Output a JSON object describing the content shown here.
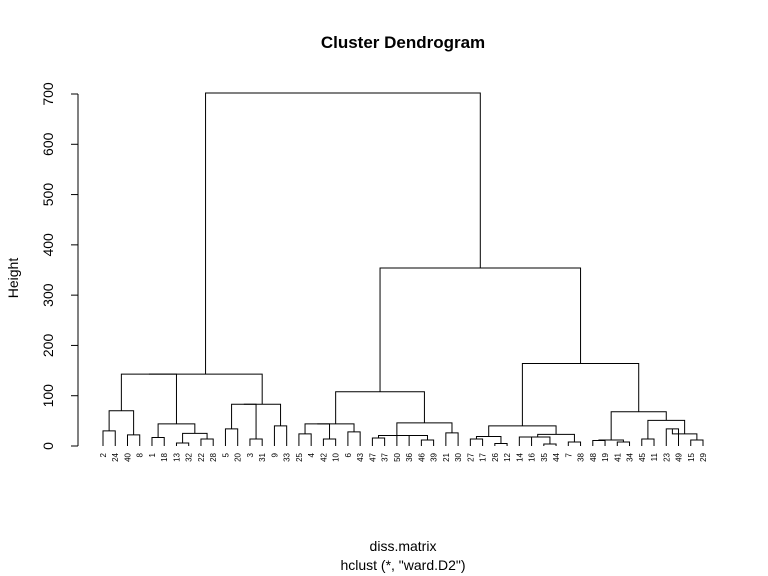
{
  "chart_data": {
    "type": "dendrogram",
    "title": "Cluster Dendrogram",
    "ylabel": "Height",
    "xlabel": "diss.matrix",
    "sub": "hclust (*, \"ward.D2\")",
    "ylim": [
      0,
      700
    ],
    "yticks": [
      0,
      100,
      200,
      300,
      400,
      500,
      600,
      700
    ],
    "leaves": [
      "2",
      "24",
      "40",
      "8",
      "1",
      "18",
      "13",
      "32",
      "22",
      "28",
      "5",
      "20",
      "3",
      "31",
      "9",
      "33",
      "25",
      "4",
      "42",
      "10",
      "6",
      "43",
      "47",
      "37",
      "50",
      "36",
      "46",
      "39",
      "21",
      "30",
      "27",
      "17",
      "26",
      "12",
      "14",
      "16",
      "35",
      "44",
      "7",
      "38",
      "48",
      "19",
      "41",
      "34",
      "45",
      "11",
      "23",
      "49",
      "15",
      "29"
    ],
    "merges": [
      {
        "children": [
          "2",
          "24"
        ],
        "height": 30
      },
      {
        "children": [
          "40",
          "8"
        ],
        "height": 22
      },
      {
        "children": [
          0,
          1
        ],
        "height": 70
      },
      {
        "children": [
          "1",
          "18"
        ],
        "height": 17
      },
      {
        "children": [
          "13",
          "32"
        ],
        "height": 6
      },
      {
        "children": [
          "22",
          "28"
        ],
        "height": 14
      },
      {
        "children": [
          4,
          5
        ],
        "height": 25
      },
      {
        "children": [
          3,
          6
        ],
        "height": 44
      },
      {
        "children": [
          2,
          7
        ],
        "height": 143
      },
      {
        "children": [
          "5",
          "20"
        ],
        "height": 34
      },
      {
        "children": [
          "3",
          "31"
        ],
        "height": 14
      },
      {
        "children": [
          9,
          10
        ],
        "height": 83
      },
      {
        "children": [
          "9",
          "33"
        ],
        "height": 40
      },
      {
        "children": [
          11,
          12
        ],
        "height": 83
      },
      {
        "children": [
          8,
          13
        ],
        "height": 143
      },
      {
        "children": [
          "25",
          "4"
        ],
        "height": 24
      },
      {
        "children": [
          "42",
          "10"
        ],
        "height": 14
      },
      {
        "children": [
          15,
          16
        ],
        "height": 44
      },
      {
        "children": [
          "6",
          "43"
        ],
        "height": 28
      },
      {
        "children": [
          17,
          18
        ],
        "height": 44
      },
      {
        "children": [
          "47",
          "37"
        ],
        "height": 16
      },
      {
        "children": [
          "50",
          "36"
        ],
        "height": 21
      },
      {
        "children": [
          "46",
          "39"
        ],
        "height": 12
      },
      {
        "children": [
          21,
          22
        ],
        "height": 21
      },
      {
        "children": [
          20,
          23
        ],
        "height": 21
      },
      {
        "children": [
          "21",
          "30"
        ],
        "height": 26
      },
      {
        "children": [
          24,
          25
        ],
        "height": 46
      },
      {
        "children": [
          19,
          26
        ],
        "height": 108
      },
      {
        "children": [
          "27",
          "17"
        ],
        "height": 14
      },
      {
        "children": [
          "26",
          "12"
        ],
        "height": 5
      },
      {
        "children": [
          28,
          29
        ],
        "height": 19
      },
      {
        "children": [
          "14",
          "16"
        ],
        "height": 18
      },
      {
        "children": [
          "35",
          "44"
        ],
        "height": 4
      },
      {
        "children": [
          31,
          32
        ],
        "height": 18
      },
      {
        "children": [
          "7",
          "38"
        ],
        "height": 8
      },
      {
        "children": [
          33,
          34
        ],
        "height": 23
      },
      {
        "children": [
          30,
          35
        ],
        "height": 40
      },
      {
        "children": [
          "48",
          "19"
        ],
        "height": 11
      },
      {
        "children": [
          "41",
          "34"
        ],
        "height": 8
      },
      {
        "children": [
          37,
          38
        ],
        "height": 12
      },
      {
        "children": [
          "45",
          "11"
        ],
        "height": 14
      },
      {
        "children": [
          "23",
          "49"
        ],
        "height": 34
      },
      {
        "children": [
          "15",
          "29"
        ],
        "height": 12
      },
      {
        "children": [
          41,
          42
        ],
        "height": 24
      },
      {
        "children": [
          40,
          43
        ],
        "height": 51
      },
      {
        "children": [
          39,
          44
        ],
        "height": 68
      },
      {
        "children": [
          36,
          45
        ],
        "height": 164
      },
      {
        "children": [
          27,
          46
        ],
        "height": 354
      },
      {
        "children": [
          14,
          47
        ],
        "height": 702
      }
    ]
  }
}
